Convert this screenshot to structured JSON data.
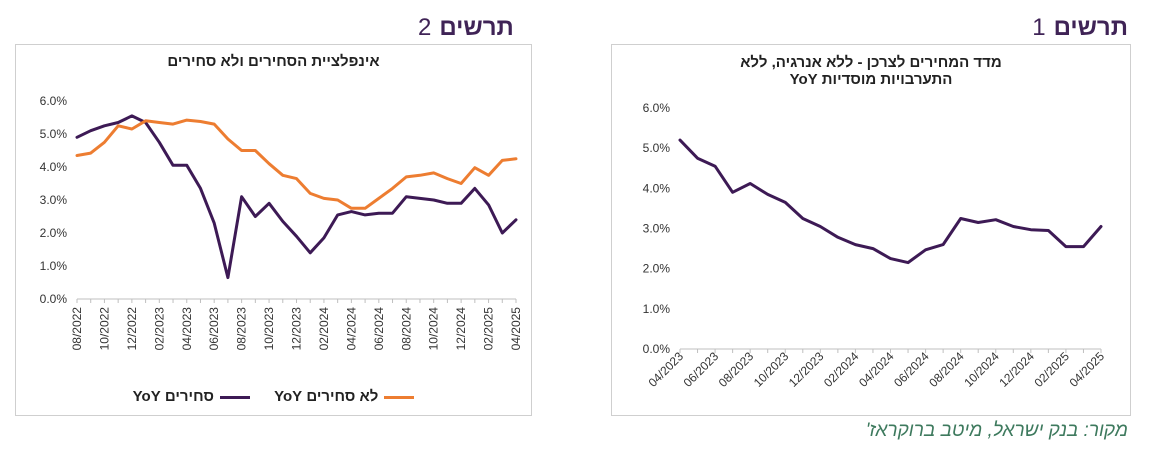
{
  "headers": {
    "chart1_word": "תרשים",
    "chart1_num": "1",
    "chart2_word": "תרשים",
    "chart2_num": "2"
  },
  "source": "מקור: בנק ישראל, מיטב ברוקראז'",
  "colors": {
    "purple": "#3d1a55",
    "orange": "#ed7d31",
    "header": "#3f2356",
    "source": "#3e7a5e"
  },
  "chart_data": [
    {
      "type": "line",
      "title_line1": "מדד המחירים לצרכן - ללא אנרגיה, ללא",
      "title_line2": "התערבויות מוסדיות YoY",
      "x_tick_labels": [
        "04/2023",
        "06/2023",
        "08/2023",
        "10/2023",
        "12/2023",
        "02/2024",
        "04/2024",
        "06/2024",
        "08/2024",
        "10/2024",
        "12/2024",
        "02/2025",
        "04/2025"
      ],
      "x": [
        "04/2023",
        "05/2023",
        "06/2023",
        "07/2023",
        "08/2023",
        "09/2023",
        "10/2023",
        "11/2023",
        "12/2023",
        "01/2024",
        "02/2024",
        "03/2024",
        "04/2024",
        "05/2024",
        "06/2024",
        "07/2024",
        "08/2024",
        "09/2024",
        "10/2024",
        "11/2024",
        "12/2024",
        "01/2025",
        "02/2025",
        "03/2025",
        "04/2025"
      ],
      "y_ticks": [
        "0.0%",
        "1.0%",
        "2.0%",
        "3.0%",
        "4.0%",
        "5.0%",
        "6.0%"
      ],
      "ylim": [
        0,
        6
      ],
      "grid": false,
      "series": [
        {
          "values": [
            5.2,
            4.75,
            4.55,
            3.9,
            4.12,
            3.85,
            3.65,
            3.25,
            3.05,
            2.78,
            2.6,
            2.5,
            2.25,
            2.15,
            2.47,
            2.6,
            3.25,
            3.15,
            3.22,
            3.05,
            2.97,
            2.95,
            2.55,
            2.55,
            3.05
          ],
          "color": "#3d1a55"
        }
      ]
    },
    {
      "type": "line",
      "title": "אינפלציית הסחירים ולא סחירים",
      "x_tick_labels": [
        "08/2022",
        "10/2022",
        "12/2022",
        "02/2023",
        "04/2023",
        "06/2023",
        "08/2023",
        "10/2023",
        "12/2023",
        "02/2024",
        "04/2024",
        "06/2024",
        "08/2024",
        "10/2024",
        "12/2024",
        "02/2025",
        "04/2025"
      ],
      "x": [
        "08/2022",
        "09/2022",
        "10/2022",
        "11/2022",
        "12/2022",
        "01/2023",
        "02/2023",
        "03/2023",
        "04/2023",
        "05/2023",
        "06/2023",
        "07/2023",
        "08/2023",
        "09/2023",
        "10/2023",
        "11/2023",
        "12/2023",
        "01/2024",
        "02/2024",
        "03/2024",
        "04/2024",
        "05/2024",
        "06/2024",
        "07/2024",
        "08/2024",
        "09/2024",
        "10/2024",
        "11/2024",
        "12/2024",
        "01/2025",
        "02/2025",
        "03/2025",
        "04/2025"
      ],
      "y_ticks": [
        "0.0%",
        "1.0%",
        "2.0%",
        "3.0%",
        "4.0%",
        "5.0%",
        "6.0%"
      ],
      "ylim": [
        0,
        6
      ],
      "grid": false,
      "legend_position": "bottom",
      "series": [
        {
          "name": "סחירים YoY",
          "color": "#3d1a55",
          "values": [
            4.9,
            5.1,
            5.25,
            5.35,
            5.55,
            5.35,
            4.75,
            4.05,
            4.05,
            3.35,
            2.3,
            0.65,
            3.1,
            2.5,
            2.9,
            2.35,
            1.9,
            1.4,
            1.85,
            2.55,
            2.65,
            2.55,
            2.6,
            2.6,
            3.1,
            3.05,
            3.0,
            2.9,
            2.9,
            3.35,
            2.85,
            2.0,
            2.4
          ]
        },
        {
          "name": "לא סחירים YoY",
          "color": "#ed7d31",
          "values": [
            4.35,
            4.42,
            4.75,
            5.25,
            5.15,
            5.4,
            5.35,
            5.3,
            5.42,
            5.38,
            5.3,
            4.85,
            4.5,
            4.5,
            4.1,
            3.75,
            3.65,
            3.2,
            3.05,
            3.0,
            2.75,
            2.75,
            3.05,
            3.35,
            3.7,
            3.75,
            3.82,
            3.65,
            3.5,
            3.98,
            3.75,
            4.2,
            4.25
          ]
        }
      ]
    }
  ]
}
